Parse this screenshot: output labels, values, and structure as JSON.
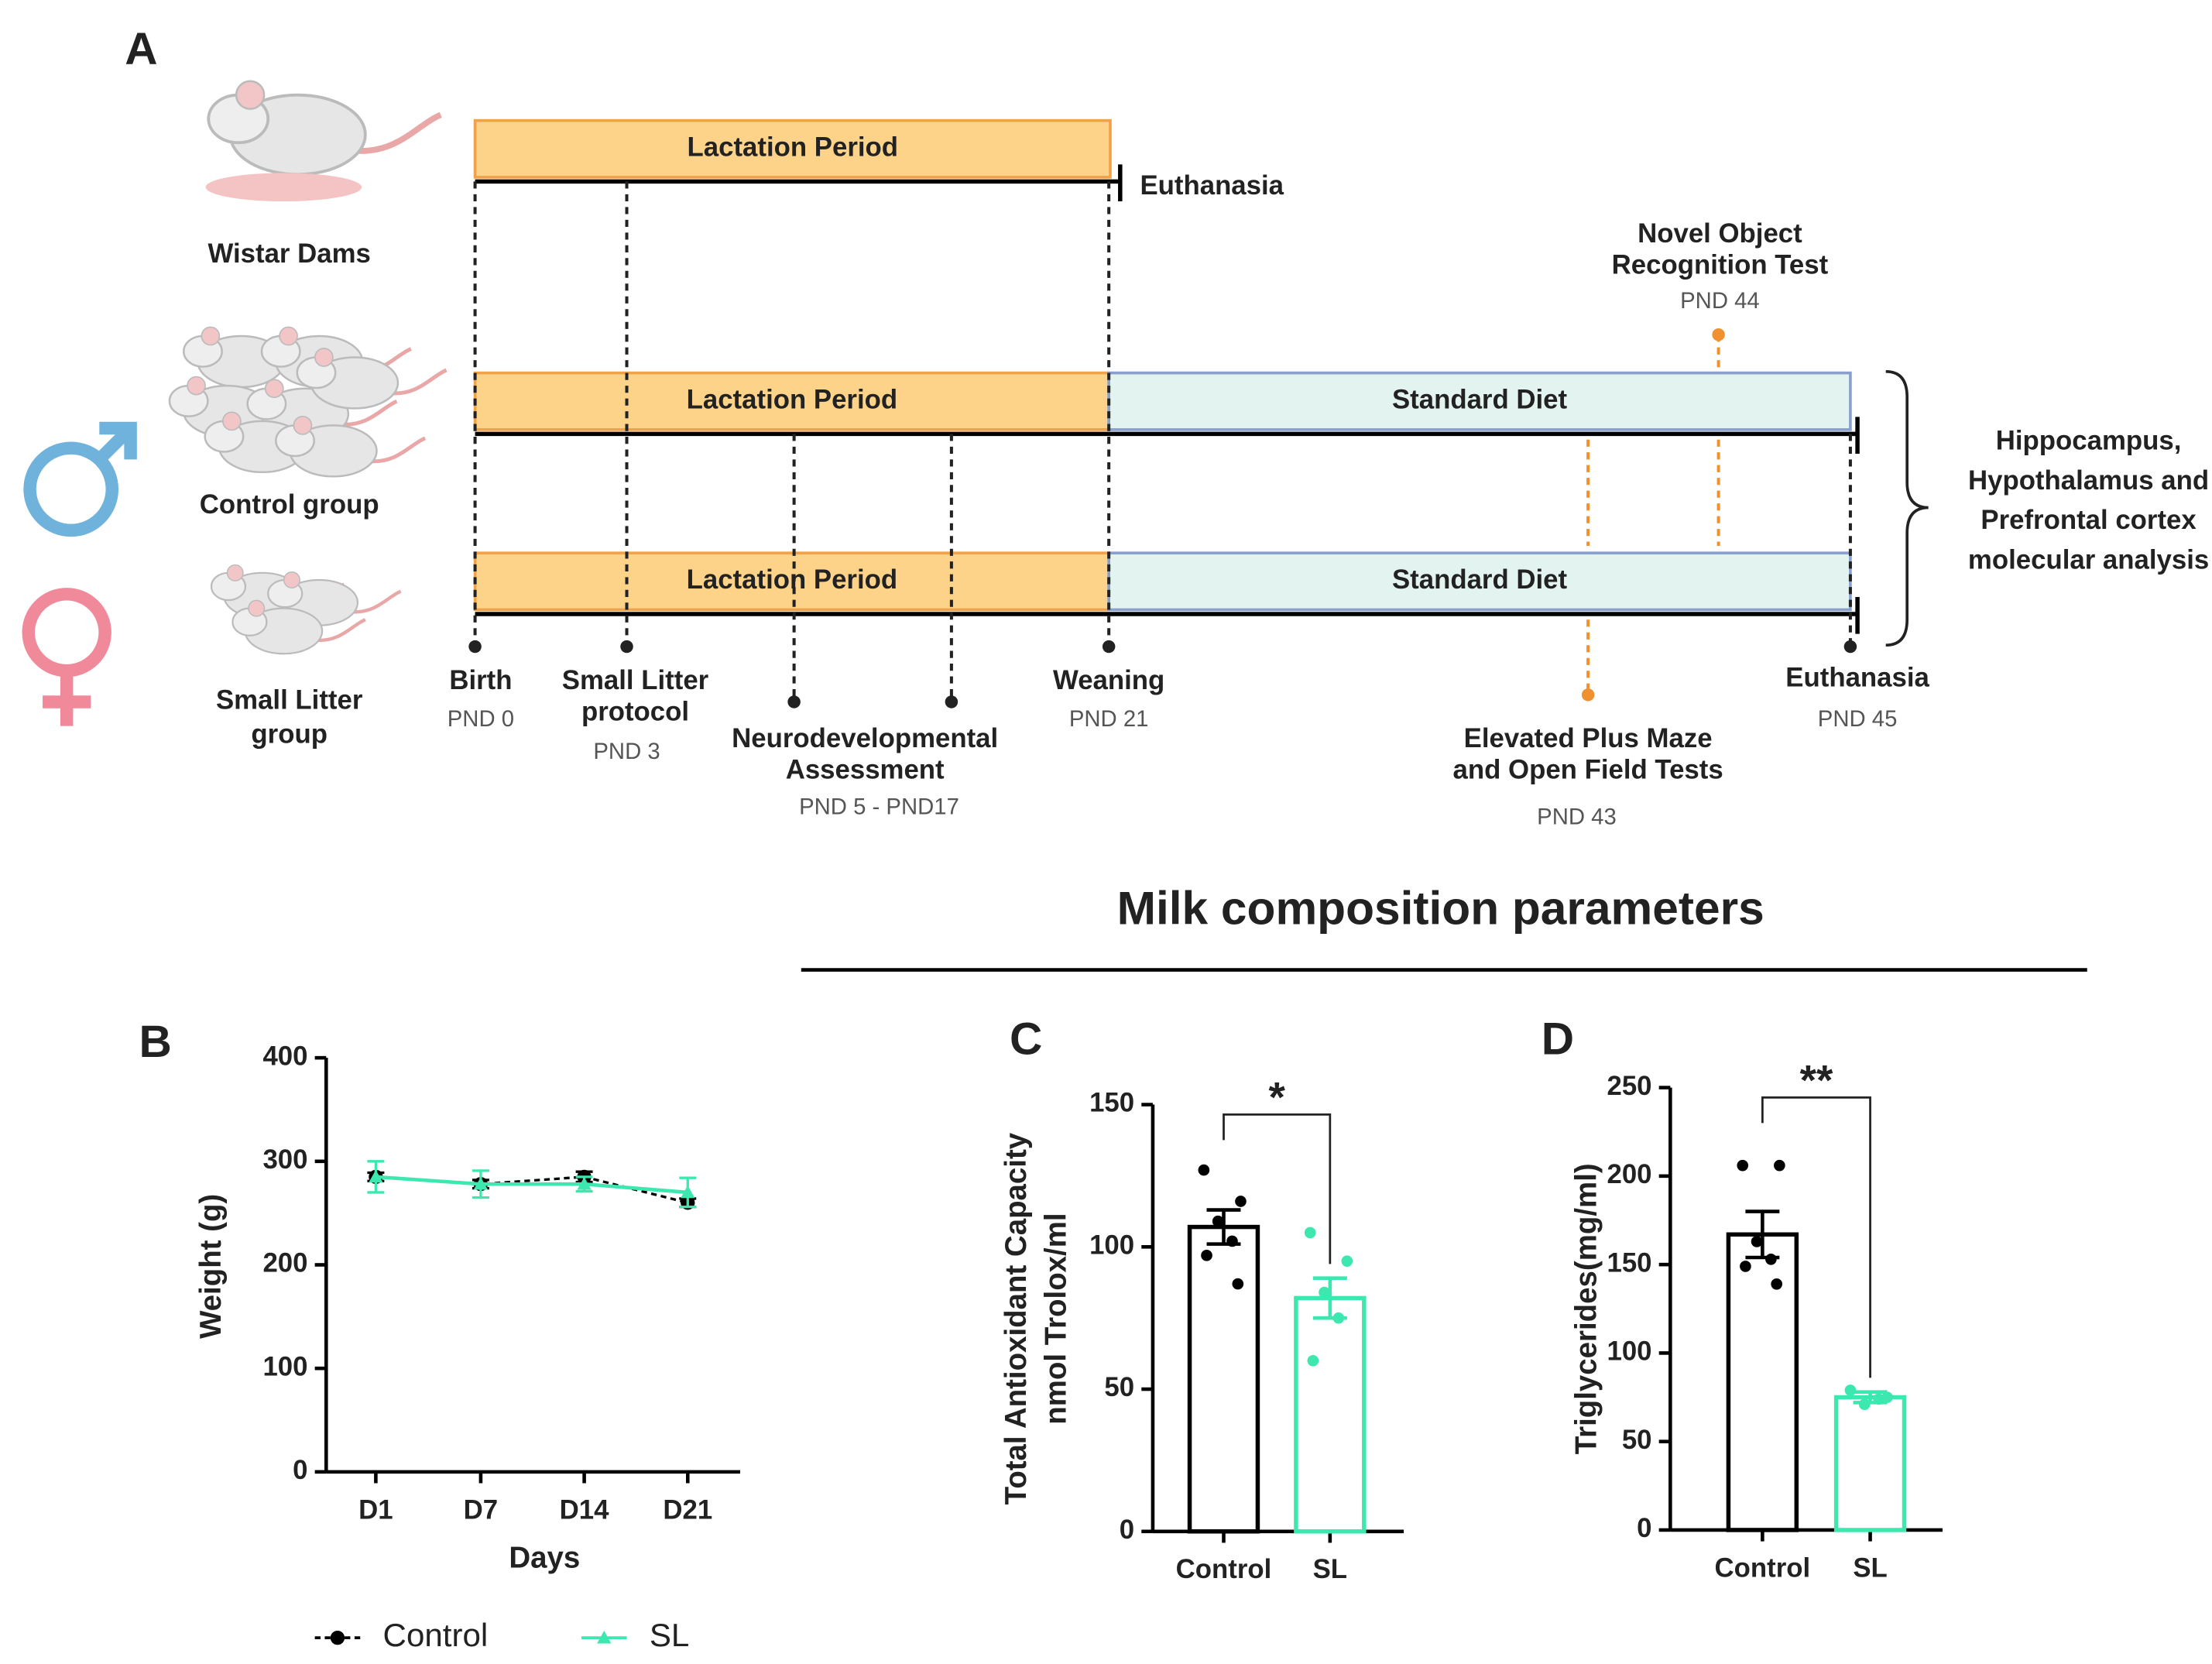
{
  "diagram": {
    "panel": "A",
    "rows": [
      {
        "name": [
          "Wistar Dams"
        ],
        "bars": [
          "Lactation Period"
        ],
        "end": "Euthanasia"
      },
      {
        "name": [
          "Control group"
        ],
        "bars": [
          "Lactation Period",
          "Standard Diet"
        ]
      },
      {
        "name": [
          "Small Litter",
          "group"
        ],
        "bars": [
          "Lactation Period",
          "Standard Diet"
        ]
      }
    ],
    "events": [
      {
        "label": [
          "Birth"
        ],
        "time": "PND 0"
      },
      {
        "label": [
          "Small Litter",
          "protocol"
        ],
        "time": "PND 3"
      },
      {
        "label": [
          "Neurodevelopmental",
          "Assessment"
        ],
        "time": "PND 5 - PND17"
      },
      {
        "label": [
          "Weaning"
        ],
        "time": "PND 21"
      },
      {
        "label": [
          "Elevated Plus Maze",
          "and Open Field Tests"
        ],
        "time": "PND 43"
      },
      {
        "label": [
          "Novel Object",
          "Recognition Test"
        ],
        "time": "PND 44"
      },
      {
        "label": [
          "Euthanasia"
        ],
        "time": "PND 45"
      }
    ],
    "outcome": [
      "Hippocampus,",
      "Hypothalamus and",
      "Prefrontal cortex",
      "molecular analysis"
    ]
  },
  "section_title": "Milk composition parameters",
  "chart_data": [
    {
      "panel": "B",
      "type": "line",
      "categories": [
        "D1",
        "D7",
        "D14",
        "D21"
      ],
      "series": [
        {
          "name": "Control",
          "color": "#000000",
          "values": [
            285,
            278,
            285,
            260
          ],
          "errors": [
            4,
            4,
            5,
            4
          ]
        },
        {
          "name": "SL",
          "color": "#3de8b0",
          "values": [
            285,
            278,
            278,
            270
          ],
          "errors": [
            15,
            13,
            7,
            14
          ]
        }
      ],
      "ylim": [
        0,
        400
      ],
      "yticks": [
        0,
        100,
        200,
        300,
        400
      ],
      "xlabel": "Days",
      "ylabel": "Weight (g)"
    },
    {
      "panel": "C",
      "type": "bar",
      "categories": [
        "Control",
        "SL"
      ],
      "colors": [
        "#000000",
        "#3de8b0"
      ],
      "values": [
        107,
        82
      ],
      "errors": [
        6,
        7
      ],
      "points": [
        [
          127,
          116,
          109,
          102,
          97,
          87
        ],
        [
          105,
          95,
          84,
          75,
          60
        ]
      ],
      "ylim": [
        0,
        150
      ],
      "yticks": [
        0,
        50,
        100,
        150
      ],
      "ylabel": [
        "Total Antioxidant Capacity",
        "nmol Trolox/ml"
      ],
      "significance": "*"
    },
    {
      "panel": "D",
      "type": "bar",
      "categories": [
        "Control",
        "SL"
      ],
      "colors": [
        "#000000",
        "#3de8b0"
      ],
      "values": [
        167,
        75
      ],
      "errors": [
        13,
        3
      ],
      "points": [
        [
          206,
          206,
          163,
          153,
          149,
          139
        ],
        [
          79,
          75,
          71,
          74
        ]
      ],
      "ylim": [
        0,
        250
      ],
      "yticks": [
        0,
        50,
        100,
        150,
        200,
        250
      ],
      "ylabel": [
        "Triglycerides(mg/ml)"
      ],
      "significance": "**"
    }
  ]
}
